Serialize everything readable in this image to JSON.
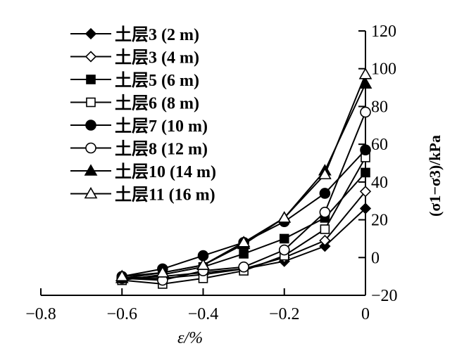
{
  "chart_data": {
    "type": "line",
    "title": "",
    "xlabel": "ε/%",
    "ylabel": "(σ1−σ3)/kPa",
    "xlim": [
      -0.8,
      0
    ],
    "ylim": [
      -20,
      120
    ],
    "xticks": [
      -0.8,
      -0.6,
      -0.4,
      -0.2,
      0
    ],
    "xtick_labels": [
      "−0.8",
      "−0.6",
      "−0.4",
      "−0.2",
      "0"
    ],
    "yticks": [
      -20,
      0,
      20,
      40,
      60,
      80,
      100,
      120
    ],
    "ytick_labels": [
      "−20",
      "0",
      "20",
      "40",
      "60",
      "80",
      "100",
      "120"
    ],
    "y_axis_side": "right",
    "grid": false,
    "legend_position": "top-left",
    "x": [
      -0.6,
      -0.5,
      -0.4,
      -0.3,
      -0.2,
      -0.1,
      0
    ],
    "series": [
      {
        "name": "土层3 (2 m)",
        "marker": "diamond-filled",
        "values": [
          -11,
          -10,
          -8,
          -6,
          -2,
          6,
          26
        ]
      },
      {
        "name": "土层3 (4 m)",
        "marker": "diamond-open",
        "values": [
          -11,
          -11,
          -9,
          -6,
          0,
          9,
          35
        ]
      },
      {
        "name": "土层5 (6 m)",
        "marker": "square-filled",
        "values": [
          -12,
          -9,
          -5,
          2,
          10,
          21,
          45
        ]
      },
      {
        "name": "土层6 (8 m)",
        "marker": "square-open",
        "values": [
          -12,
          -14,
          -11,
          -7,
          1,
          15,
          53
        ]
      },
      {
        "name": "土层7 (10 m)",
        "marker": "circle-filled",
        "values": [
          -10,
          -6,
          1,
          8,
          19,
          34,
          57
        ]
      },
      {
        "name": "土层8 (12 m)",
        "marker": "circle-open",
        "values": [
          -11,
          -12,
          -7,
          -5,
          4,
          24,
          77
        ]
      },
      {
        "name": "土层10 (14 m)",
        "marker": "triangle-filled",
        "values": [
          -11,
          -8,
          -4,
          7,
          21,
          46,
          92
        ]
      },
      {
        "name": "土层11 (16 m)",
        "marker": "triangle-open",
        "values": [
          -10,
          -8,
          -4,
          8,
          21,
          44,
          97
        ]
      }
    ]
  }
}
